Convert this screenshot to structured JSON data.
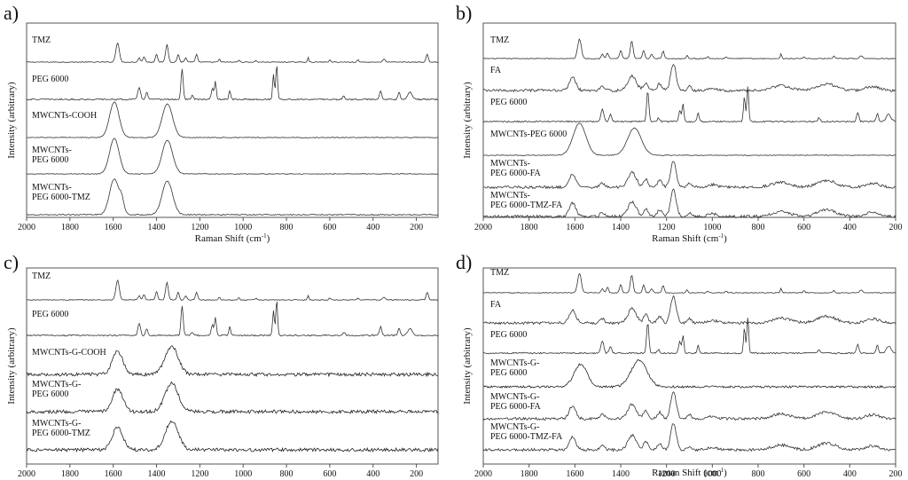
{
  "figure": {
    "description": "Raman spectra comparison, four panels"
  },
  "chart_data": [
    {
      "type": "line",
      "panel": "a)",
      "xlabel": "Raman Shift (cm",
      "xlabel_sup": "-1",
      "xlabel_close": ")",
      "ylabel": "Intensity (arbitrary)",
      "xlim": [
        2000,
        100
      ],
      "xticks": [
        2000,
        1800,
        1600,
        1400,
        1200,
        1000,
        800,
        600,
        400,
        200
      ],
      "series": [
        {
          "name": "TMZ",
          "label_lines": [
            "TMZ"
          ],
          "profile": "tmz",
          "color": "#333333"
        },
        {
          "name": "PEG 6000",
          "label_lines": [
            "PEG 6000"
          ],
          "profile": "peg",
          "color": "#333333"
        },
        {
          "name": "MWCNTs-COOH",
          "label_lines": [
            "MWCNTs-COOH"
          ],
          "profile": "cnt",
          "color": "#333333"
        },
        {
          "name": "MWCNTs-PEG 6000",
          "label_lines": [
            "MWCNTs-",
            "PEG 6000"
          ],
          "profile": "cnt",
          "color": "#333333"
        },
        {
          "name": "MWCNTs-PEG 6000-TMZ",
          "label_lines": [
            "MWCNTs-",
            "PEG 6000-TMZ"
          ],
          "profile": "cnt_tmz",
          "color": "#333333"
        }
      ]
    },
    {
      "type": "line",
      "panel": "b)",
      "xlabel": "Raman Shift (cm",
      "xlabel_sup": "-1",
      "xlabel_close": ")",
      "ylabel": "Intensity (arbitrary)",
      "xlim": [
        2000,
        200
      ],
      "xticks": [
        2000,
        1800,
        1600,
        1400,
        1200,
        1000,
        800,
        600,
        400,
        200
      ],
      "series": [
        {
          "name": "TMZ",
          "label_lines": [
            "TMZ"
          ],
          "profile": "tmz",
          "color": "#333333"
        },
        {
          "name": "FA",
          "label_lines": [
            "FA"
          ],
          "profile": "fa",
          "color": "#333333"
        },
        {
          "name": "PEG 6000",
          "label_lines": [
            "PEG 6000"
          ],
          "profile": "peg",
          "color": "#333333"
        },
        {
          "name": "MWCNTs-PEG 6000",
          "label_lines": [
            "MWCNTs-PEG 6000"
          ],
          "profile": "cnt_broad",
          "color": "#333333"
        },
        {
          "name": "MWCNTs-PEG 6000-FA",
          "label_lines": [
            "MWCNTs-",
            "PEG 6000-FA"
          ],
          "profile": "fa",
          "color": "#333333"
        },
        {
          "name": "MWCNTs-PEG 6000-TMZ-FA",
          "label_lines": [
            "MWCNTs-",
            "PEG 6000-TMZ-FA"
          ],
          "profile": "fa",
          "color": "#333333"
        }
      ]
    },
    {
      "type": "line",
      "panel": "c)",
      "xlabel": "",
      "xlabel_sup": "",
      "xlabel_close": "",
      "ylabel": "Intensity (arbitrary)",
      "xlim": [
        2000,
        100
      ],
      "xticks": [
        2000,
        1800,
        1600,
        1400,
        1200,
        1000,
        800,
        600,
        400,
        200
      ],
      "series": [
        {
          "name": "TMZ",
          "label_lines": [
            "TMZ"
          ],
          "profile": "tmz",
          "color": "#333333"
        },
        {
          "name": "PEG 6000",
          "label_lines": [
            "PEG 6000"
          ],
          "profile": "peg",
          "color": "#333333"
        },
        {
          "name": "MWCNTs-G-COOH",
          "label_lines": [
            "MWCNTs-G-COOH"
          ],
          "profile": "cntg",
          "color": "#222222"
        },
        {
          "name": "MWCNTs-G-PEG 6000",
          "label_lines": [
            "MWCNTs-G-",
            "PEG 6000"
          ],
          "profile": "cntg",
          "color": "#222222"
        },
        {
          "name": "MWCNTs-G-PEG 6000-TMZ",
          "label_lines": [
            "MWCNTs-G-",
            "PEG 6000-TMZ"
          ],
          "profile": "cntg",
          "color": "#222222"
        }
      ]
    },
    {
      "type": "line",
      "panel": "d)",
      "xlabel": "Raman Shift (cm",
      "xlabel_sup": "-1",
      "xlabel_close": ")",
      "ylabel": "Intensity (arbitrary)",
      "xlim": [
        2000,
        200
      ],
      "xticks": [
        2000,
        1800,
        1600,
        1400,
        1200,
        1000,
        800,
        600,
        400,
        200
      ],
      "series": [
        {
          "name": "TMZ",
          "label_lines": [
            "TMZ"
          ],
          "profile": "tmz",
          "color": "#333333"
        },
        {
          "name": "FA",
          "label_lines": [
            "FA"
          ],
          "profile": "fa",
          "color": "#333333"
        },
        {
          "name": "PEG 6000",
          "label_lines": [
            "PEG 6000"
          ],
          "profile": "peg",
          "color": "#333333"
        },
        {
          "name": "MWCNTs-G-PEG 6000",
          "label_lines": [
            "MWCNTs-G-",
            "PEG 6000"
          ],
          "profile": "cntg_broad",
          "color": "#222222"
        },
        {
          "name": "MWCNTs-G-PEG 6000-FA",
          "label_lines": [
            "MWCNTs-G-",
            "PEG 6000-FA"
          ],
          "profile": "fa",
          "color": "#333333"
        },
        {
          "name": "MWCNTs-G-PEG 6000-TMZ-FA",
          "label_lines": [
            "MWCNTs-G-",
            "PEG 6000-TMZ-FA"
          ],
          "profile": "fa",
          "color": "#333333"
        }
      ]
    }
  ]
}
